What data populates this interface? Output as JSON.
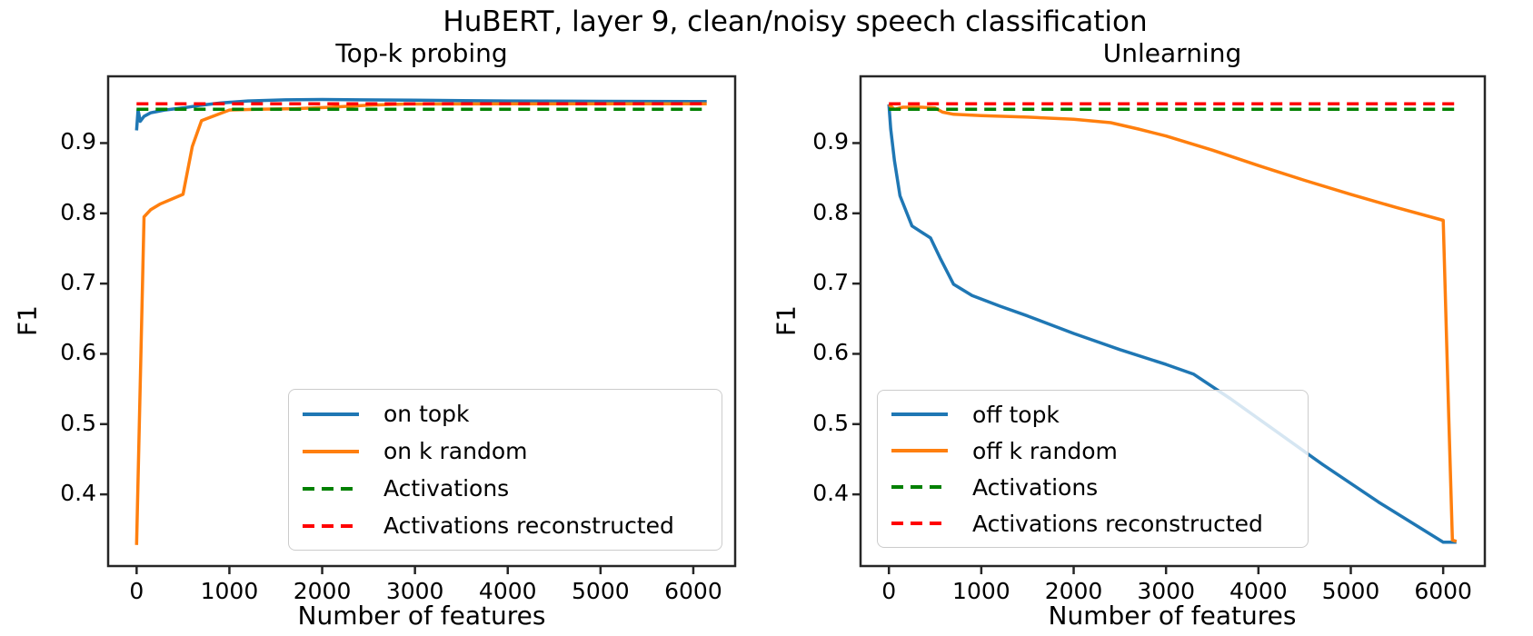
{
  "figure": {
    "title": "HuBERT, layer 9, clean/noisy speech classification"
  },
  "chart_data": [
    {
      "type": "line",
      "title": "Top-k probing",
      "xlabel": "Number of features",
      "ylabel": "F1",
      "grid": false,
      "legend_position": "lower right inside",
      "xlim": [
        -307,
        6451
      ],
      "ylim": [
        0.298,
        0.995
      ],
      "xticks": [
        0,
        1000,
        2000,
        3000,
        4000,
        5000,
        6000
      ],
      "xtick_labels": [
        "0",
        "1000",
        "2000",
        "3000",
        "4000",
        "5000",
        "6000"
      ],
      "yticks": [
        0.4,
        0.5,
        0.6,
        0.7,
        0.8,
        0.9
      ],
      "ytick_labels": [
        "0.4",
        "0.5",
        "0.6",
        "0.7",
        "0.8",
        "0.9"
      ],
      "series": [
        {
          "name": "on topk",
          "color": "#1f77b4",
          "style": "solid",
          "points": [
            [
              0,
              0.918
            ],
            [
              15,
              0.947
            ],
            [
              40,
              0.931
            ],
            [
              80,
              0.938
            ],
            [
              150,
              0.943
            ],
            [
              300,
              0.947
            ],
            [
              500,
              0.95
            ],
            [
              700,
              0.954
            ],
            [
              900,
              0.957
            ],
            [
              1200,
              0.96
            ],
            [
              1600,
              0.9615
            ],
            [
              2000,
              0.962
            ],
            [
              2400,
              0.9615
            ],
            [
              3000,
              0.961
            ],
            [
              4000,
              0.96
            ],
            [
              5000,
              0.9595
            ],
            [
              6144,
              0.959
            ]
          ]
        },
        {
          "name": "on k random",
          "color": "#ff7f0e",
          "style": "solid",
          "points": [
            [
              0,
              0.328
            ],
            [
              80,
              0.795
            ],
            [
              150,
              0.805
            ],
            [
              250,
              0.813
            ],
            [
              500,
              0.827
            ],
            [
              600,
              0.895
            ],
            [
              700,
              0.932
            ],
            [
              900,
              0.942
            ],
            [
              1000,
              0.947
            ],
            [
              1300,
              0.948
            ],
            [
              1700,
              0.949
            ],
            [
              2100,
              0.951
            ],
            [
              2500,
              0.954
            ],
            [
              2900,
              0.9555
            ],
            [
              4000,
              0.956
            ],
            [
              5000,
              0.956
            ],
            [
              6144,
              0.956
            ]
          ]
        },
        {
          "name": "Activations",
          "color": "#008000",
          "style": "dashed",
          "hline": 0.948,
          "x_range": [
            0,
            6144
          ]
        },
        {
          "name": "Activations reconstructed",
          "color": "#ff0000",
          "style": "dashed",
          "hline": 0.956,
          "x_range": [
            0,
            6144
          ]
        }
      ]
    },
    {
      "type": "line",
      "title": "Unlearning",
      "xlabel": "Number of features",
      "ylabel": "F1",
      "grid": false,
      "legend_position": "lower left inside",
      "xlim": [
        -307,
        6451
      ],
      "ylim": [
        0.298,
        0.995
      ],
      "xticks": [
        0,
        1000,
        2000,
        3000,
        4000,
        5000,
        6000
      ],
      "xtick_labels": [
        "0",
        "1000",
        "2000",
        "3000",
        "4000",
        "5000",
        "6000"
      ],
      "yticks": [
        0.4,
        0.5,
        0.6,
        0.7,
        0.8,
        0.9
      ],
      "ytick_labels": [
        "0.4",
        "0.5",
        "0.6",
        "0.7",
        "0.8",
        "0.9"
      ],
      "series": [
        {
          "name": "off topk",
          "color": "#1f77b4",
          "style": "solid",
          "points": [
            [
              0,
              0.955
            ],
            [
              20,
              0.92
            ],
            [
              60,
              0.875
            ],
            [
              120,
              0.825
            ],
            [
              250,
              0.782
            ],
            [
              450,
              0.765
            ],
            [
              560,
              0.735
            ],
            [
              700,
              0.699
            ],
            [
              900,
              0.683
            ],
            [
              1200,
              0.668
            ],
            [
              1500,
              0.654
            ],
            [
              2000,
              0.629
            ],
            [
              2500,
              0.606
            ],
            [
              3000,
              0.585
            ],
            [
              3300,
              0.571
            ],
            [
              3700,
              0.536
            ],
            [
              4200,
              0.489
            ],
            [
              4700,
              0.442
            ],
            [
              5300,
              0.389
            ],
            [
              6000,
              0.332
            ],
            [
              6144,
              0.332
            ]
          ]
        },
        {
          "name": "off k random",
          "color": "#ff7f0e",
          "style": "solid",
          "points": [
            [
              0,
              0.955
            ],
            [
              60,
              0.948
            ],
            [
              150,
              0.951
            ],
            [
              350,
              0.951
            ],
            [
              500,
              0.95
            ],
            [
              580,
              0.944
            ],
            [
              700,
              0.941
            ],
            [
              1000,
              0.939
            ],
            [
              1500,
              0.937
            ],
            [
              2000,
              0.934
            ],
            [
              2400,
              0.929
            ],
            [
              2700,
              0.92
            ],
            [
              3000,
              0.91
            ],
            [
              3500,
              0.89
            ],
            [
              4000,
              0.868
            ],
            [
              4500,
              0.847
            ],
            [
              5000,
              0.827
            ],
            [
              5500,
              0.808
            ],
            [
              6000,
              0.79
            ],
            [
              6060,
              0.51
            ],
            [
              6100,
              0.335
            ],
            [
              6144,
              0.333
            ]
          ]
        },
        {
          "name": "Activations",
          "color": "#008000",
          "style": "dashed",
          "hline": 0.948,
          "x_range": [
            0,
            6144
          ]
        },
        {
          "name": "Activations reconstructed",
          "color": "#ff0000",
          "style": "dashed",
          "hline": 0.956,
          "x_range": [
            0,
            6144
          ]
        }
      ]
    }
  ],
  "style": {
    "spine_color": "#262626",
    "dash_pattern": "13 8",
    "line_width": 3.5
  }
}
